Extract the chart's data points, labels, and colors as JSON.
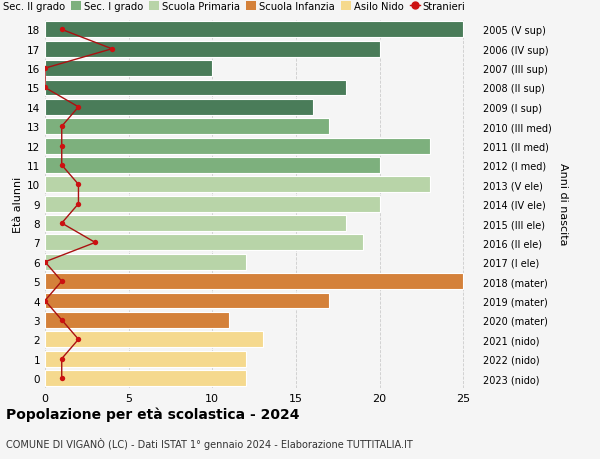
{
  "ages": [
    18,
    17,
    16,
    15,
    14,
    13,
    12,
    11,
    10,
    9,
    8,
    7,
    6,
    5,
    4,
    3,
    2,
    1,
    0
  ],
  "years": [
    "2005 (V sup)",
    "2006 (IV sup)",
    "2007 (III sup)",
    "2008 (II sup)",
    "2009 (I sup)",
    "2010 (III med)",
    "2011 (II med)",
    "2012 (I med)",
    "2013 (V ele)",
    "2014 (IV ele)",
    "2015 (III ele)",
    "2016 (II ele)",
    "2017 (I ele)",
    "2018 (mater)",
    "2019 (mater)",
    "2020 (mater)",
    "2021 (nido)",
    "2022 (nido)",
    "2023 (nido)"
  ],
  "bar_values": [
    25,
    20,
    10,
    18,
    16,
    17,
    23,
    20,
    23,
    20,
    18,
    19,
    12,
    25,
    17,
    11,
    13,
    12,
    12
  ],
  "bar_colors": [
    "#4a7c59",
    "#4a7c59",
    "#4a7c59",
    "#4a7c59",
    "#4a7c59",
    "#7db07d",
    "#7db07d",
    "#7db07d",
    "#b8d4a8",
    "#b8d4a8",
    "#b8d4a8",
    "#b8d4a8",
    "#b8d4a8",
    "#d4813a",
    "#d4813a",
    "#d4813a",
    "#f5d98e",
    "#f5d98e",
    "#f5d98e"
  ],
  "stranieri_values": [
    1,
    4,
    0,
    0,
    2,
    1,
    1,
    1,
    2,
    2,
    1,
    3,
    0,
    1,
    0,
    1,
    2,
    1,
    1
  ],
  "title": "Popolazione per età scolastica - 2024",
  "subtitle": "COMUNE DI VIGANÒ (LC) - Dati ISTAT 1° gennaio 2024 - Elaborazione TUTTITALIA.IT",
  "ylabel_left": "Età alunni",
  "ylabel_right": "Anni di nascita",
  "legend_labels": [
    "Sec. II grado",
    "Sec. I grado",
    "Scuola Primaria",
    "Scuola Infanzia",
    "Asilo Nido",
    "Stranieri"
  ],
  "legend_colors": [
    "#4a7c59",
    "#7db07d",
    "#b8d4a8",
    "#d4813a",
    "#f5d98e",
    "#cc1111"
  ],
  "xlim": [
    0,
    26
  ],
  "background_color": "#f5f5f5",
  "bar_edge_color": "white",
  "grid_color": "#cccccc",
  "stranieri_line_color": "#aa1111",
  "stranieri_dot_color": "#cc1111"
}
